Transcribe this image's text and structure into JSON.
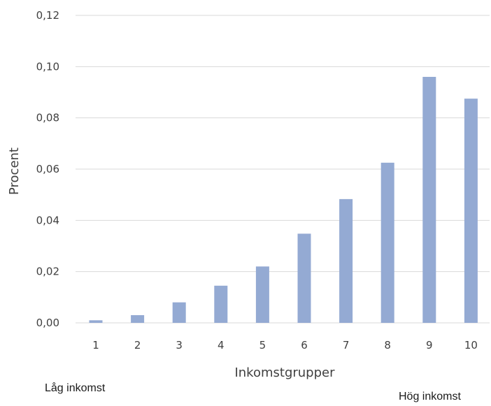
{
  "chart_data": {
    "type": "bar",
    "categories": [
      "1",
      "2",
      "3",
      "4",
      "5",
      "6",
      "7",
      "8",
      "9",
      "10"
    ],
    "values": [
      0.001,
      0.003,
      0.008,
      0.0145,
      0.022,
      0.0348,
      0.0483,
      0.0625,
      0.096,
      0.0875
    ],
    "xlabel": "Inkomstgrupper",
    "ylabel": "Procent",
    "ylim": [
      0,
      0.12
    ],
    "yticks": [
      "0,00",
      "0,02",
      "0,04",
      "0,06",
      "0,08",
      "0,10",
      "0,12"
    ],
    "grid": true,
    "bar_color": "#94aad3",
    "grid_color": "#d9d9d9"
  },
  "annotations": {
    "low": "Låg inkomst",
    "high": "Hög inkomst"
  }
}
